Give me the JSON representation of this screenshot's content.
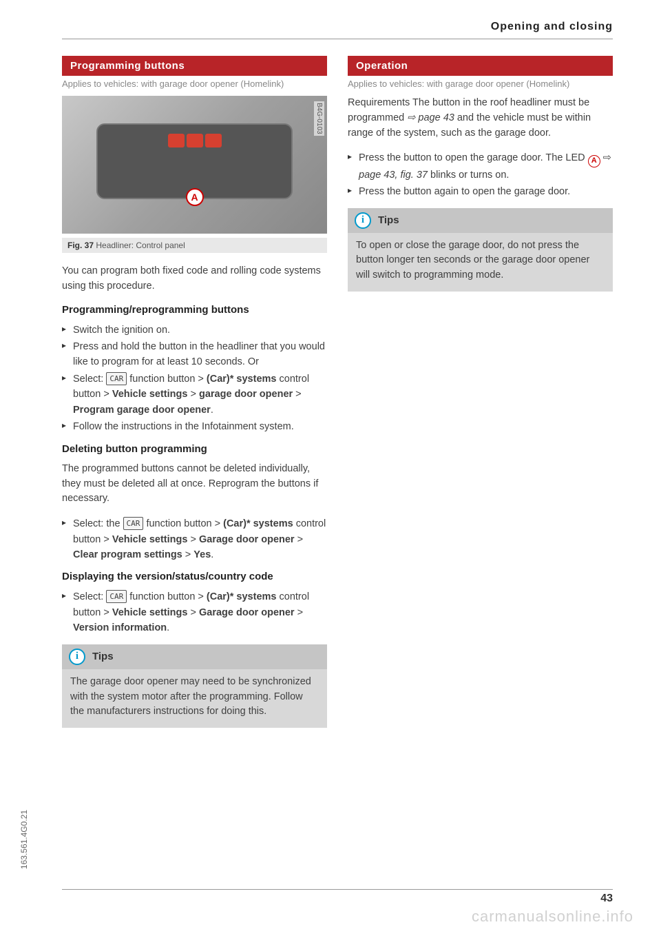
{
  "header": {
    "title": "Opening and closing"
  },
  "left": {
    "heading": "Programming buttons",
    "applies": "Applies to vehicles: with garage door opener (Homelink)",
    "fig_side_label": "B4G-0103",
    "fig_caption_bold": "Fig. 37",
    "fig_caption": " Headliner: Control panel",
    "callout_a": "A",
    "intro": "You can program both fixed code and rolling code systems using this procedure.",
    "sub1": "Programming/reprogramming buttons",
    "steps1": {
      "s1": "Switch the ignition on.",
      "s2": "Press and hold the button in the headliner that you would like to program for at least 10 seconds. Or",
      "s3_pre": "Select: ",
      "s3_car": "CAR",
      "s3_mid1": " function button > ",
      "s3_b1": "(Car)* systems",
      "s3_mid2": " control button > ",
      "s3_b2": "Vehicle settings",
      "s3_mid3": " > ",
      "s3_b3": "garage door opener",
      "s3_mid4": " > ",
      "s3_b4": "Program garage door opener",
      "s3_end": ".",
      "s4": "Follow the instructions in the Infotainment system."
    },
    "sub2": "Deleting button programming",
    "del_text": "The programmed buttons cannot be deleted individually, they must be deleted all at once. Reprogram the buttons if necessary.",
    "steps2": {
      "pre": "Select: the ",
      "car": "CAR",
      "m1": " function button > ",
      "b1": "(Car)* systems",
      "m2": " control button > ",
      "b2": "Vehicle settings",
      "m3": " > ",
      "b3": "Garage door opener",
      "m4": " > ",
      "b4": "Clear program settings",
      "m5": " > ",
      "b5": "Yes",
      "end": "."
    },
    "sub3": "Displaying the version/status/country code",
    "steps3": {
      "pre": "Select: ",
      "car": "CAR",
      "m1": " function button > ",
      "b1": "(Car)* systems",
      "m2": " control button > ",
      "b2": "Vehicle settings",
      "m3": " > ",
      "b3": "Garage door opener",
      "m4": " > ",
      "b4": "Version information",
      "end": "."
    },
    "tips_label": "Tips",
    "tips_body": "The garage door opener may need to be synchronized with the system motor after the programming. Follow the manufacturers instructions for doing this."
  },
  "right": {
    "heading": "Operation",
    "applies": "Applies to vehicles: with garage door opener (Homelink)",
    "req_pre": "Requirements The button in the roof headliner must be programmed ",
    "req_ref": "⇨ page 43",
    "req_post": " and the vehicle must be within range of the system, such as the garage door.",
    "steps": {
      "s1_pre": "Press the button to open the garage door. The LED ",
      "s1_a": "A",
      "s1_mid": " ⇨ ",
      "s1_ref": "page 43, fig. 37",
      "s1_post": " blinks or turns on.",
      "s2": "Press the button again to open the garage door."
    },
    "tips_label": "Tips",
    "tips_body": "To open or close the garage door, do not press the button longer ten seconds or the garage door opener will switch to programming mode."
  },
  "side_label": "163.561.4G0.21",
  "page_number": "43",
  "watermark": "carmanualsonline.info",
  "info_glyph": "i"
}
